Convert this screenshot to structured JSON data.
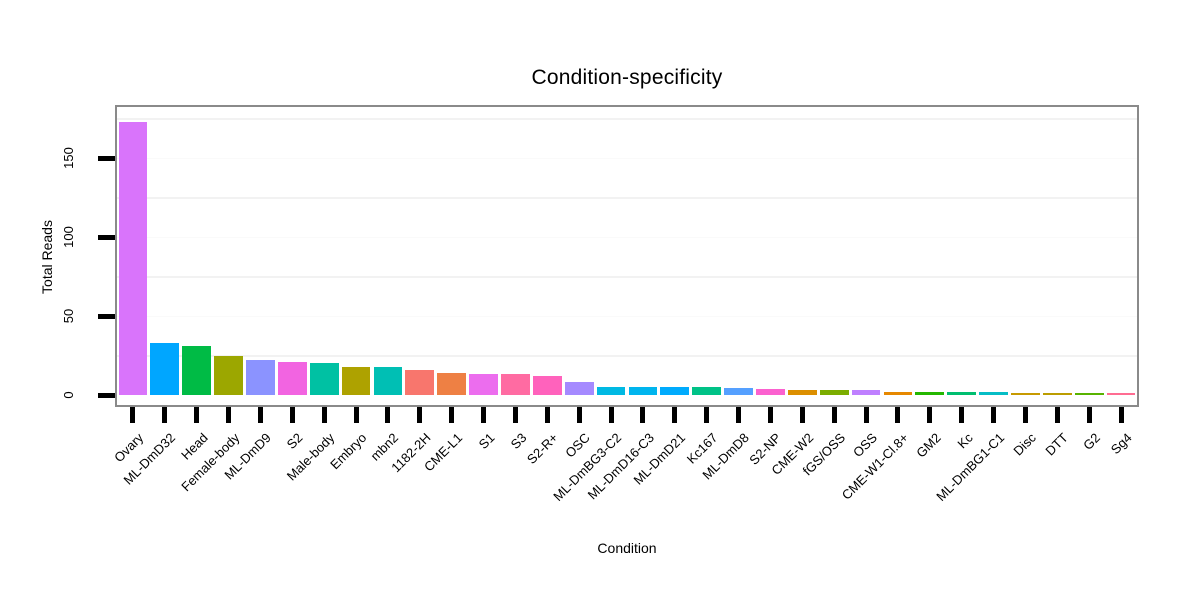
{
  "chart_data": {
    "type": "bar",
    "title": "Condition-specificity",
    "xlabel": "Condition",
    "ylabel": "Total Reads",
    "ylim": [
      0,
      190
    ],
    "yticks": [
      0,
      50,
      100,
      150
    ],
    "minor_gridlines": [
      25,
      75,
      125,
      175
    ],
    "major_gridlines": [
      50,
      100,
      150
    ],
    "legend": "none",
    "grid": "faint horizontal gridlines on white panel",
    "categories": [
      "Ovary",
      "ML-DmD32",
      "Head",
      "Female-body",
      "ML-DmD9",
      "S2",
      "Male-body",
      "Embryo",
      "mbn2",
      "1182-2H",
      "CME-L1",
      "S1",
      "S3",
      "S2-R+",
      "OSC",
      "ML-DmBG3-C2",
      "ML-DmD16-C3",
      "ML-DmD21",
      "Kc167",
      "ML-DmD8",
      "S2-NP",
      "CME-W2",
      "fGS/OSS",
      "OSS",
      "CME-W1-Cl.8+",
      "GM2",
      "Kc",
      "ML-DmBG1-C1",
      "Disc",
      "DTT",
      "G2",
      "Sg4"
    ],
    "values": [
      173,
      33,
      31,
      25,
      22,
      21,
      20,
      18,
      18,
      16,
      14,
      13.5,
      13.5,
      12,
      8,
      5,
      5,
      5,
      5,
      4.5,
      3.5,
      3,
      3,
      3,
      2,
      2,
      2,
      2,
      1.5,
      1.5,
      1.5,
      1
    ],
    "colors": [
      "#D974FB",
      "#00A6FF",
      "#00BB45",
      "#9CA700",
      "#8B93FF",
      "#F264E1",
      "#00C1A3",
      "#AEA200",
      "#00BFB4",
      "#F8766D",
      "#EE8044",
      "#EC6DEE",
      "#FF6BA2",
      "#FF62BC",
      "#A58AFF",
      "#00B9E3",
      "#00B5EE",
      "#00ABFD",
      "#00C287",
      "#55A0FF",
      "#FB61CF",
      "#DC8F00",
      "#7BAD00",
      "#BF80FF",
      "#E68800",
      "#24B700",
      "#00BE70",
      "#06BDC5",
      "#C79A00",
      "#BC9D00",
      "#58B300",
      "#FF6C92"
    ]
  },
  "style_colors": {
    "panel_border": "#8a8a8a",
    "tick": "#000000",
    "text": "#000000",
    "minor_grid": "#f2f2f2",
    "background": "#ffffff"
  }
}
